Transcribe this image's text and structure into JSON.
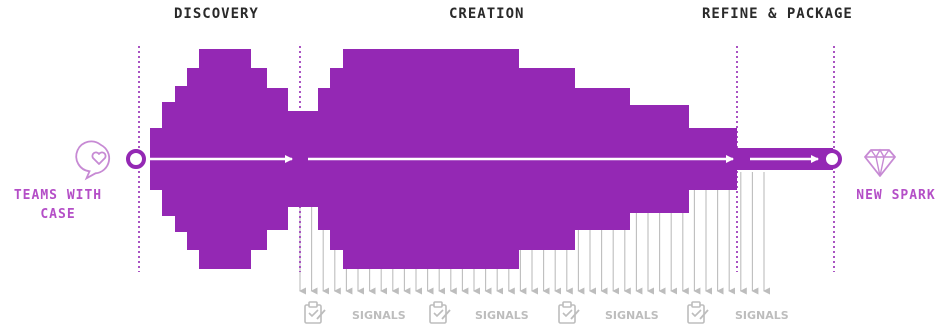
{
  "phases": {
    "discovery": "DISCOVERY",
    "creation": "CREATION",
    "refine": "REFINE & PACKAGE"
  },
  "start_label": "TEAMS WITH\nCASE",
  "end_label": "NEW SPARK",
  "signals_label": "SIGNALS",
  "signals_count": 4,
  "colors": {
    "shape": "#9428b4",
    "label_accent": "#b44ec7",
    "icon_line": "#c78ad4",
    "grey": "#bdbdbd",
    "text_dark": "#2a2a2a"
  },
  "icons": {
    "start": "heart-speech-bubble-icon",
    "end": "diamond-icon",
    "signal": "clipboard-icon"
  }
}
